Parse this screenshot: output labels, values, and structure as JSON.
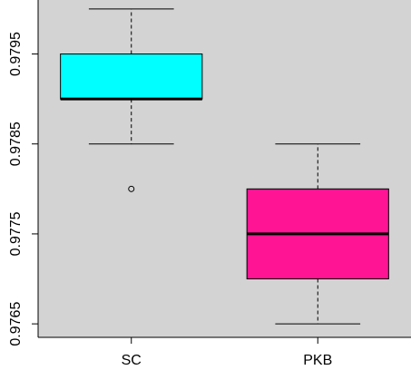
{
  "chart_data": {
    "type": "boxplot",
    "title": "",
    "xlabel": "",
    "ylabel": "",
    "categories": [
      "SC",
      "PKB"
    ],
    "ylim": [
      0.97635,
      0.9801
    ],
    "y_ticks": [
      0.9765,
      0.9775,
      0.9785,
      0.9795
    ],
    "y_tick_labels": [
      "0.9765",
      "0.9775",
      "0.9785",
      "0.9795"
    ],
    "background": "#d3d3d3",
    "grid": false,
    "legend": "none",
    "boxes": [
      {
        "category": "SC",
        "color": "#00ffff",
        "whisker_low": 0.9785,
        "q1": 0.979,
        "median": 0.979,
        "q3": 0.9795,
        "whisker_high": 0.98,
        "outliers": [
          0.978
        ]
      },
      {
        "category": "PKB",
        "color": "#ff1493",
        "whisker_low": 0.9765,
        "q1": 0.977,
        "median": 0.9775,
        "q3": 0.978,
        "whisker_high": 0.9785,
        "outliers": []
      }
    ]
  }
}
